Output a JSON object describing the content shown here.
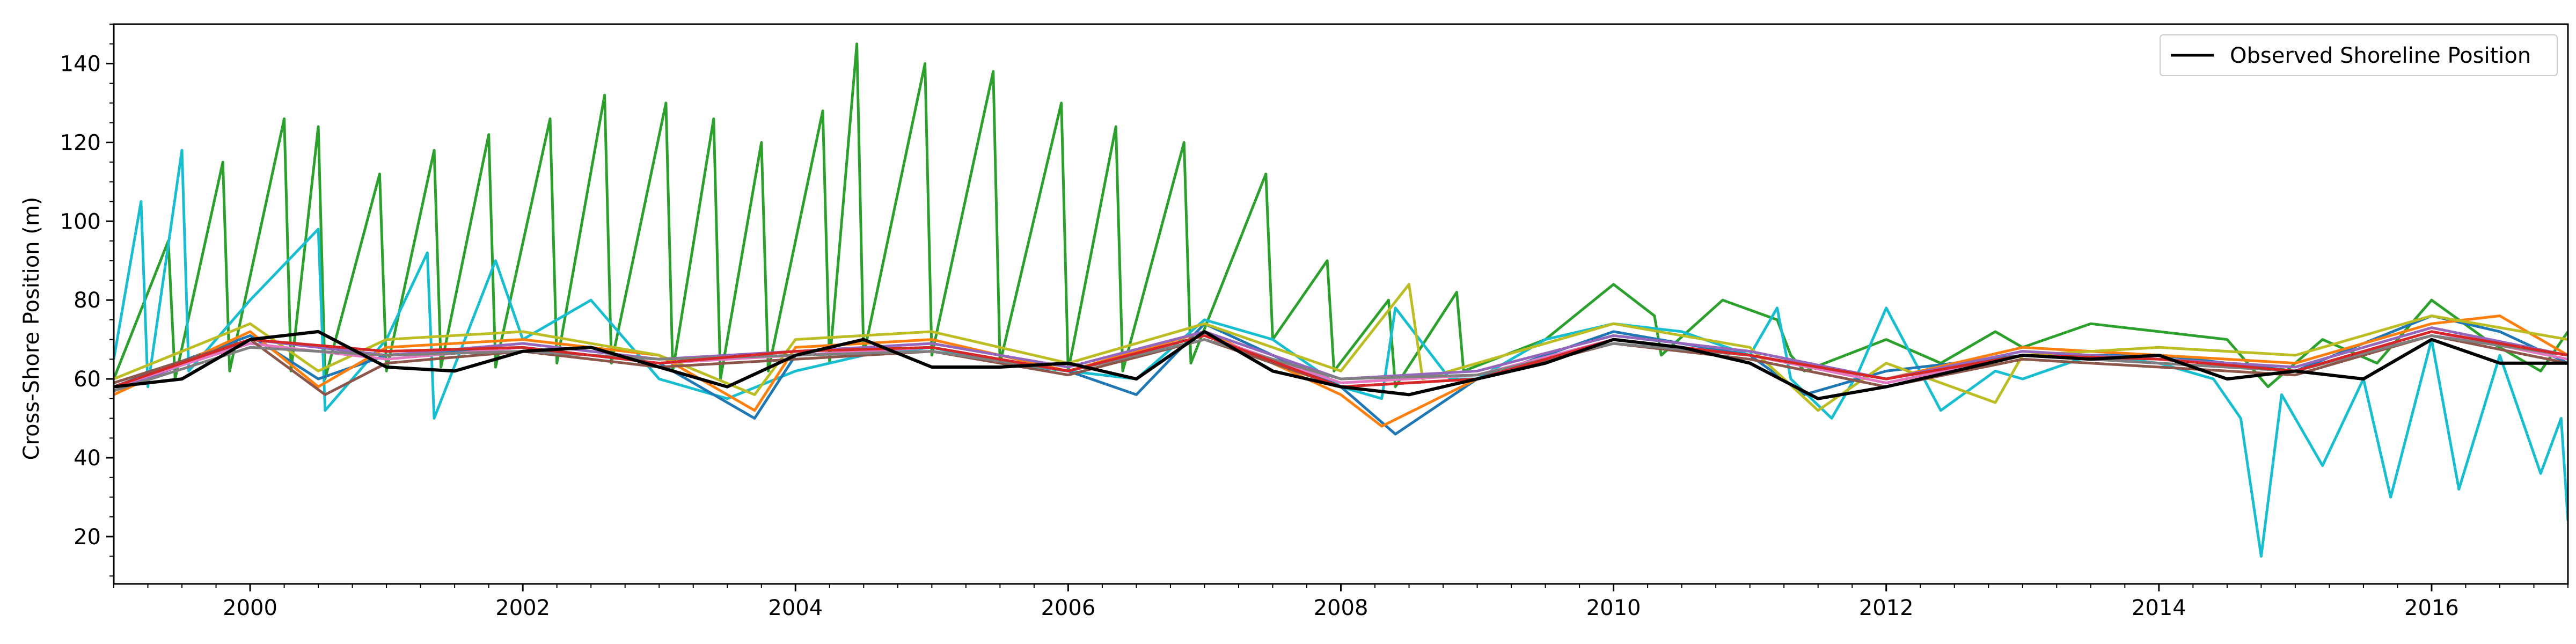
{
  "chart_data": {
    "type": "line",
    "title": "",
    "xlabel": "",
    "ylabel": "Cross-Shore Position (m)",
    "xlim": [
      1999.0,
      2017.0
    ],
    "ylim": [
      8,
      150
    ],
    "x_ticks": [
      2000,
      2002,
      2004,
      2006,
      2008,
      2010,
      2012,
      2014,
      2016
    ],
    "x_tick_labels": [
      "2000",
      "2002",
      "2004",
      "2006",
      "2008",
      "2010",
      "2012",
      "2014",
      "2016"
    ],
    "y_ticks": [
      20,
      40,
      60,
      80,
      100,
      120,
      140
    ],
    "y_tick_labels": [
      "20",
      "40",
      "60",
      "80",
      "100",
      "120",
      "140"
    ],
    "grid": false,
    "legend": {
      "placement": "top-right",
      "entries": [
        "Observed Shoreline Position"
      ]
    },
    "series": [
      {
        "name": "Observed Shoreline Position",
        "color": "#000000",
        "x": [
          1999.0,
          1999.5,
          2000.0,
          2000.5,
          2001.0,
          2001.5,
          2002.0,
          2002.5,
          2003.0,
          2003.5,
          2004.0,
          2004.5,
          2005.0,
          2005.5,
          2006.0,
          2006.5,
          2007.0,
          2007.5,
          2008.0,
          2008.5,
          2009.0,
          2009.5,
          2010.0,
          2010.5,
          2011.0,
          2011.5,
          2012.0,
          2012.5,
          2013.0,
          2013.5,
          2014.0,
          2014.5,
          2015.0,
          2015.5,
          2016.0,
          2016.5,
          2017.0
        ],
        "y": [
          58,
          60,
          70,
          72,
          63,
          62,
          67,
          68,
          63,
          58,
          66,
          70,
          63,
          63,
          64,
          60,
          72,
          62,
          58,
          56,
          60,
          64,
          70,
          68,
          64,
          55,
          58,
          62,
          66,
          65,
          66,
          60,
          62,
          60,
          70,
          64,
          64
        ]
      },
      {
        "color": "#2ca02c",
        "x": [
          1999.0,
          1999.4,
          1999.45,
          1999.8,
          1999.85,
          2000.25,
          2000.3,
          2000.5,
          2000.55,
          2000.95,
          2001.0,
          2001.35,
          2001.4,
          2001.75,
          2001.8,
          2002.2,
          2002.25,
          2002.6,
          2002.65,
          2003.05,
          2003.1,
          2003.4,
          2003.45,
          2003.75,
          2003.8,
          2004.2,
          2004.25,
          2004.45,
          2004.5,
          2004.95,
          2005.0,
          2005.45,
          2005.5,
          2005.95,
          2006.0,
          2006.35,
          2006.4,
          2006.85,
          2006.9,
          2007.45,
          2007.5,
          2007.9,
          2007.95,
          2008.35,
          2008.4,
          2008.85,
          2008.9,
          2009.5,
          2010.0,
          2010.3,
          2010.35,
          2010.8,
          2011.2,
          2011.3,
          2011.4,
          2012.0,
          2012.4,
          2012.8,
          2013.0,
          2013.5,
          2014.0,
          2014.5,
          2014.8,
          2015.2,
          2015.6,
          2016.0,
          2016.4,
          2016.8,
          2017.0
        ],
        "y": [
          60,
          95,
          60,
          115,
          62,
          126,
          62,
          124,
          60,
          112,
          62,
          118,
          63,
          122,
          63,
          126,
          64,
          132,
          64,
          130,
          62,
          126,
          60,
          120,
          62,
          128,
          64,
          145,
          66,
          140,
          66,
          138,
          64,
          130,
          62,
          124,
          62,
          120,
          64,
          112,
          70,
          90,
          62,
          80,
          58,
          82,
          62,
          70,
          84,
          76,
          66,
          80,
          75,
          66,
          62,
          70,
          64,
          72,
          68,
          74,
          72,
          70,
          58,
          70,
          64,
          80,
          70,
          62,
          72
        ]
      },
      {
        "color": "#17becf",
        "x": [
          1999.0,
          1999.2,
          1999.25,
          1999.5,
          1999.55,
          2000.0,
          2000.5,
          2000.55,
          2001.0,
          2001.3,
          2001.35,
          2001.8,
          2002.0,
          2002.5,
          2003.0,
          2003.5,
          2004.0,
          2004.5,
          2005.0,
          2005.5,
          2006.0,
          2006.5,
          2007.0,
          2007.5,
          2008.0,
          2008.3,
          2008.4,
          2008.8,
          2009.0,
          2009.5,
          2010.0,
          2010.5,
          2011.0,
          2011.2,
          2011.3,
          2011.6,
          2011.8,
          2012.0,
          2012.4,
          2012.8,
          2013.0,
          2013.5,
          2014.0,
          2014.4,
          2014.6,
          2014.75,
          2014.9,
          2015.2,
          2015.5,
          2015.7,
          2016.0,
          2016.2,
          2016.5,
          2016.8,
          2016.95,
          2017.0
        ],
        "y": [
          65,
          105,
          58,
          118,
          62,
          80,
          98,
          52,
          70,
          92,
          50,
          90,
          70,
          80,
          60,
          55,
          62,
          66,
          68,
          64,
          62,
          60,
          75,
          70,
          58,
          55,
          78,
          60,
          60,
          70,
          74,
          72,
          66,
          78,
          60,
          50,
          62,
          78,
          52,
          62,
          60,
          66,
          64,
          60,
          50,
          15,
          56,
          38,
          60,
          30,
          70,
          32,
          66,
          36,
          50,
          24
        ]
      },
      {
        "color": "#1f77b4",
        "x": [
          1999.0,
          2000.0,
          2000.5,
          2001.0,
          2002.0,
          2003.0,
          2003.7,
          2004.0,
          2005.0,
          2006.0,
          2006.5,
          2007.0,
          2008.0,
          2008.4,
          2009.0,
          2010.0,
          2011.0,
          2011.4,
          2012.0,
          2013.0,
          2014.0,
          2015.0,
          2016.0,
          2016.5,
          2017.0
        ],
        "y": [
          58,
          71,
          60,
          66,
          68,
          64,
          50,
          66,
          68,
          62,
          56,
          74,
          58,
          46,
          60,
          72,
          66,
          56,
          62,
          66,
          66,
          62,
          76,
          72,
          64
        ]
      },
      {
        "color": "#ff7f0e",
        "x": [
          1999.0,
          2000.0,
          2000.5,
          2001.0,
          2002.0,
          2003.0,
          2003.7,
          2004.0,
          2005.0,
          2006.0,
          2007.0,
          2008.0,
          2008.3,
          2009.0,
          2010.0,
          2011.0,
          2012.0,
          2013.0,
          2014.0,
          2015.0,
          2016.0,
          2016.5,
          2017.0
        ],
        "y": [
          56,
          72,
          58,
          68,
          70,
          66,
          52,
          68,
          70,
          62,
          72,
          56,
          48,
          60,
          70,
          66,
          60,
          68,
          66,
          64,
          74,
          76,
          66
        ]
      },
      {
        "color": "#bcbd22",
        "x": [
          1999.0,
          2000.0,
          2000.5,
          2001.0,
          2002.0,
          2003.0,
          2003.7,
          2004.0,
          2005.0,
          2006.0,
          2007.0,
          2008.0,
          2008.5,
          2008.6,
          2009.0,
          2010.0,
          2011.0,
          2011.5,
          2012.0,
          2012.8,
          2013.0,
          2014.0,
          2015.0,
          2016.0,
          2017.0
        ],
        "y": [
          60,
          74,
          62,
          70,
          72,
          66,
          56,
          70,
          72,
          64,
          74,
          62,
          84,
          60,
          64,
          74,
          68,
          52,
          64,
          54,
          66,
          68,
          66,
          76,
          70
        ]
      },
      {
        "color": "#9467bd",
        "x": [
          1999.0,
          2000.0,
          2001.0,
          2002.0,
          2003.0,
          2004.0,
          2005.0,
          2006.0,
          2007.0,
          2008.0,
          2009.0,
          2010.0,
          2011.0,
          2012.0,
          2013.0,
          2014.0,
          2015.0,
          2016.0,
          2017.0
        ],
        "y": [
          57,
          70,
          66,
          69,
          65,
          67,
          69,
          63,
          72,
          60,
          62,
          71,
          67,
          60,
          67,
          65,
          63,
          73,
          66
        ]
      },
      {
        "color": "#e377c2",
        "x": [
          1999.0,
          2000.0,
          2001.0,
          2002.0,
          2003.0,
          2004.0,
          2005.0,
          2006.0,
          2007.0,
          2008.0,
          2009.0,
          2010.0,
          2011.0,
          2012.0,
          2013.0,
          2014.0,
          2015.0,
          2016.0,
          2017.0
        ],
        "y": [
          58,
          69,
          65,
          68,
          64,
          66,
          68,
          62,
          71,
          59,
          61,
          70,
          66,
          59,
          66,
          64,
          62,
          72,
          65
        ]
      },
      {
        "color": "#8c564b",
        "x": [
          1999.0,
          2000.0,
          2000.55,
          2001.0,
          2002.0,
          2003.0,
          2004.0,
          2005.0,
          2006.0,
          2007.0,
          2008.0,
          2009.0,
          2010.0,
          2011.0,
          2012.0,
          2013.0,
          2014.0,
          2015.0,
          2016.0,
          2017.0
        ],
        "y": [
          59,
          70,
          56,
          64,
          67,
          63,
          65,
          67,
          61,
          70,
          58,
          60,
          69,
          65,
          58,
          65,
          63,
          61,
          71,
          64
        ]
      },
      {
        "color": "#7f7f7f",
        "x": [
          1999.0,
          2000.0,
          2001.0,
          2002.0,
          2003.0,
          2004.0,
          2005.0,
          2006.0,
          2007.0,
          2008.0,
          2009.0,
          2010.0,
          2011.0,
          2012.0,
          2013.0,
          2014.0,
          2015.0,
          2016.0,
          2017.0
        ],
        "y": [
          57,
          68,
          66,
          67,
          65,
          66,
          67,
          62,
          70,
          60,
          61,
          69,
          66,
          60,
          66,
          64,
          62,
          71,
          66
        ]
      },
      {
        "color": "#d62728",
        "x": [
          1999.0,
          2000.0,
          2001.0,
          2002.0,
          2003.0,
          2004.0,
          2005.0,
          2006.0,
          2007.0,
          2008.0,
          2009.0,
          2010.0,
          2011.0,
          2012.0,
          2013.0,
          2014.0,
          2015.0,
          2016.0,
          2017.0
        ],
        "y": [
          58,
          70,
          67,
          68,
          64,
          67,
          68,
          62,
          71,
          58,
          60,
          70,
          66,
          60,
          66,
          65,
          62,
          72,
          66
        ]
      }
    ]
  }
}
